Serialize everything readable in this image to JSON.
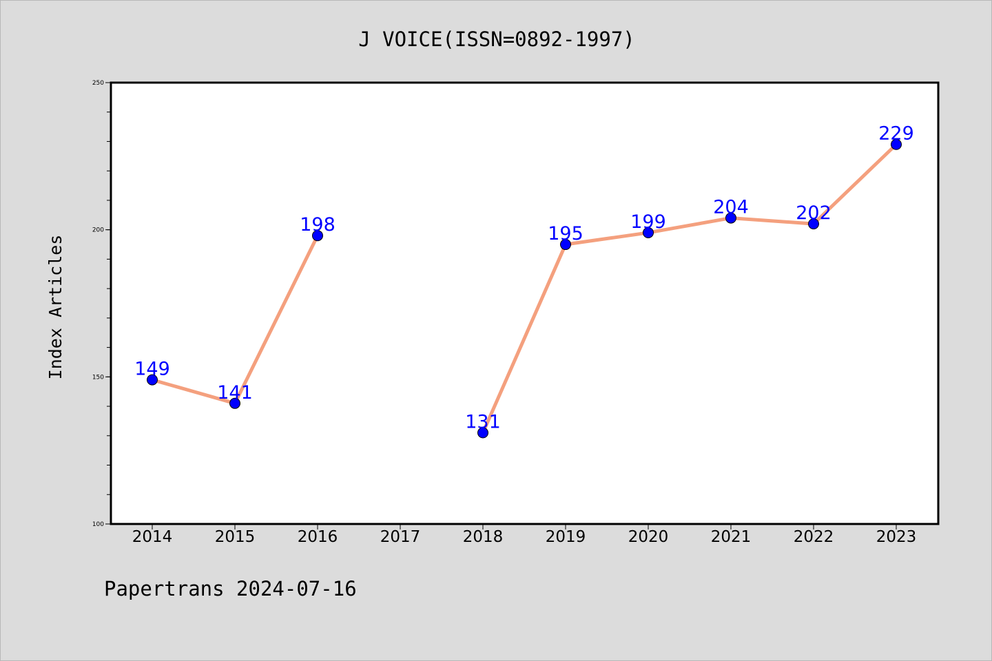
{
  "chart_data": {
    "type": "line",
    "title": "J VOICE(ISSN=0892-1997)",
    "xlabel": "",
    "ylabel": "Index Articles",
    "categories": [
      "2014",
      "2015",
      "2016",
      "2017",
      "2018",
      "2019",
      "2020",
      "2021",
      "2022",
      "2023"
    ],
    "values": [
      149,
      141,
      198,
      null,
      131,
      195,
      199,
      204,
      202,
      229
    ],
    "data_labels": [
      "149",
      "141",
      "198",
      "",
      "131",
      "195",
      "199",
      "204",
      "202",
      "229"
    ],
    "ylim": [
      100,
      250
    ],
    "y_ticks": [
      "100",
      "150",
      "200",
      "250"
    ],
    "grid": false,
    "legend": "none",
    "line_color": "#f4a07e",
    "marker_color": "#0000ff",
    "label_color": "#0000ff"
  },
  "footer": {
    "source": "Papertrans 2024-07-16"
  },
  "colors": {
    "background": "#dcdcdc",
    "plot_background": "#ffffff",
    "axis": "#000000"
  }
}
